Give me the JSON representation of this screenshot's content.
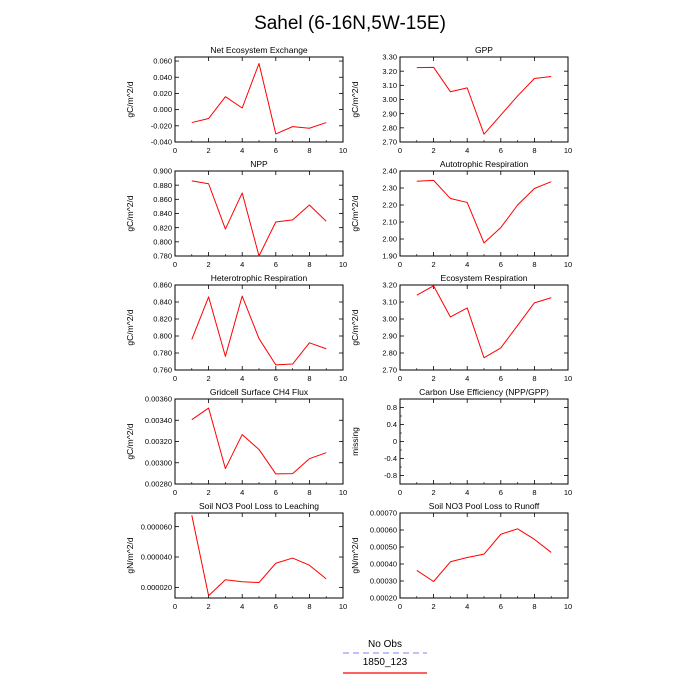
{
  "title": "Sahel (6-16N,5W-15E)",
  "legend": {
    "placement": "bottom-center",
    "entries": [
      {
        "label": "No Obs",
        "color": "#9b9bff",
        "style": "dashed"
      },
      {
        "label": "1850_123",
        "color": "#ff0000",
        "style": "solid"
      }
    ]
  },
  "chart_data": [
    {
      "type": "line",
      "title": "Net Ecosystem Exchange",
      "ylabel": "gC/m^2/d",
      "xlim": [
        0,
        10
      ],
      "xticks": [
        0,
        2,
        4,
        6,
        8,
        10
      ],
      "ylim": [
        -0.04,
        0.065
      ],
      "yticks": [
        "-0.040",
        "-0.020",
        "0.000",
        "0.020",
        "0.040",
        "0.060"
      ],
      "yticks_v": [
        -0.04,
        -0.02,
        0.0,
        0.02,
        0.04,
        0.06
      ],
      "x": [
        1,
        2,
        3,
        4,
        5,
        6,
        7,
        8,
        9
      ],
      "series": [
        {
          "name": "1850_123",
          "color": "#ff0000",
          "values": [
            -0.016,
            -0.011,
            0.016,
            0.002,
            0.057,
            -0.03,
            -0.021,
            -0.023,
            -0.016
          ]
        }
      ]
    },
    {
      "type": "line",
      "title": "GPP",
      "ylabel": "gC/m^2/d",
      "xlim": [
        0,
        10
      ],
      "xticks": [
        0,
        2,
        4,
        6,
        8,
        10
      ],
      "ylim": [
        2.7,
        3.3
      ],
      "yticks": [
        "2.70",
        "2.80",
        "2.90",
        "3.00",
        "3.10",
        "3.20",
        "3.30"
      ],
      "yticks_v": [
        2.7,
        2.8,
        2.9,
        3.0,
        3.1,
        3.2,
        3.3
      ],
      "x": [
        1,
        2,
        3,
        4,
        5,
        6,
        7,
        8,
        9
      ],
      "series": [
        {
          "name": "1850_123",
          "color": "#ff0000",
          "values": [
            3.225,
            3.227,
            3.055,
            3.082,
            2.755,
            2.89,
            3.025,
            3.148,
            3.162
          ]
        }
      ]
    },
    {
      "type": "line",
      "title": "NPP",
      "ylabel": "gC/m^2/d",
      "xlim": [
        0,
        10
      ],
      "xticks": [
        0,
        2,
        4,
        6,
        8,
        10
      ],
      "ylim": [
        0.78,
        0.9
      ],
      "yticks": [
        "0.780",
        "0.800",
        "0.820",
        "0.840",
        "0.860",
        "0.880",
        "0.900"
      ],
      "yticks_v": [
        0.78,
        0.8,
        0.82,
        0.84,
        0.86,
        0.88,
        0.9
      ],
      "x": [
        1,
        2,
        3,
        4,
        5,
        6,
        7,
        8,
        9
      ],
      "series": [
        {
          "name": "1850_123",
          "color": "#ff0000",
          "values": [
            0.886,
            0.882,
            0.818,
            0.869,
            0.78,
            0.828,
            0.831,
            0.852,
            0.829
          ]
        }
      ]
    },
    {
      "type": "line",
      "title": "Autotrophic Respiration",
      "ylabel": "gC/m^2/d",
      "xlim": [
        0,
        10
      ],
      "xticks": [
        0,
        2,
        4,
        6,
        8,
        10
      ],
      "ylim": [
        1.9,
        2.4
      ],
      "yticks": [
        "1.90",
        "2.00",
        "2.10",
        "2.20",
        "2.30",
        "2.40"
      ],
      "yticks_v": [
        1.9,
        2.0,
        2.1,
        2.2,
        2.3,
        2.4
      ],
      "x": [
        1,
        2,
        3,
        4,
        5,
        6,
        7,
        8,
        9
      ],
      "series": [
        {
          "name": "1850_123",
          "color": "#ff0000",
          "values": [
            2.34,
            2.345,
            2.238,
            2.215,
            1.977,
            2.067,
            2.2,
            2.297,
            2.337
          ]
        }
      ]
    },
    {
      "type": "line",
      "title": "Heterotrophic Respiration",
      "ylabel": "gC/m^2/d",
      "xlim": [
        0,
        10
      ],
      "xticks": [
        0,
        2,
        4,
        6,
        8,
        10
      ],
      "ylim": [
        0.76,
        0.86
      ],
      "yticks": [
        "0.760",
        "0.780",
        "0.800",
        "0.820",
        "0.840",
        "0.860"
      ],
      "yticks_v": [
        0.76,
        0.78,
        0.8,
        0.82,
        0.84,
        0.86
      ],
      "x": [
        1,
        2,
        3,
        4,
        5,
        6,
        7,
        8,
        9
      ],
      "series": [
        {
          "name": "1850_123",
          "color": "#ff0000",
          "values": [
            0.796,
            0.846,
            0.776,
            0.847,
            0.797,
            0.766,
            0.767,
            0.792,
            0.785
          ]
        }
      ]
    },
    {
      "type": "line",
      "title": "Ecosystem Respiration",
      "ylabel": "gC/m^2/d",
      "xlim": [
        0,
        10
      ],
      "xticks": [
        0,
        2,
        4,
        6,
        8,
        10
      ],
      "ylim": [
        2.7,
        3.2
      ],
      "yticks": [
        "2.70",
        "2.80",
        "2.90",
        "3.00",
        "3.10",
        "3.20"
      ],
      "yticks_v": [
        2.7,
        2.8,
        2.9,
        3.0,
        3.1,
        3.2
      ],
      "x": [
        1,
        2,
        3,
        4,
        5,
        6,
        7,
        8,
        9
      ],
      "series": [
        {
          "name": "1850_123",
          "color": "#ff0000",
          "values": [
            3.14,
            3.195,
            3.012,
            3.065,
            2.772,
            2.83,
            2.962,
            3.095,
            3.125
          ]
        }
      ]
    },
    {
      "type": "line",
      "title": "Gridcell Surface CH4 Flux",
      "ylabel": "gC/m^2/d",
      "xlim": [
        0,
        10
      ],
      "xticks": [
        0,
        2,
        4,
        6,
        8,
        10
      ],
      "ylim": [
        0.0028,
        0.0036
      ],
      "yticks": [
        "0.00280",
        "0.00300",
        "0.00320",
        "0.00340",
        "0.00360"
      ],
      "yticks_v": [
        0.0028,
        0.003,
        0.0032,
        0.0034,
        0.0036
      ],
      "x": [
        1,
        2,
        3,
        4,
        5,
        6,
        7,
        8,
        9
      ],
      "series": [
        {
          "name": "1850_123",
          "color": "#ff0000",
          "values": [
            0.003405,
            0.003515,
            0.002945,
            0.003265,
            0.003125,
            0.002895,
            0.002898,
            0.003038,
            0.003095
          ]
        }
      ]
    },
    {
      "type": "line",
      "title": "Carbon Use Efficiency (NPP/GPP)",
      "ylabel": "missing",
      "xlim": [
        0,
        10
      ],
      "xticks": [
        0,
        2,
        4,
        6,
        8,
        10
      ],
      "ylim": [
        -1.0,
        1.0
      ],
      "yticks": [
        "-0.8",
        "-0.4",
        "0",
        "0.4",
        "0.8"
      ],
      "yticks_v": [
        -0.8,
        -0.4,
        0,
        0.4,
        0.8
      ],
      "yminor_v": [
        -0.6,
        -0.2,
        0.2,
        0.6
      ],
      "x": [],
      "series": []
    },
    {
      "type": "line",
      "title": "Soil NO3 Pool Loss to Leaching",
      "ylabel": "gN/m^2/d",
      "xlim": [
        0,
        10
      ],
      "xticks": [
        0,
        2,
        4,
        6,
        8,
        10
      ],
      "ylim": [
        1.3e-05,
        6.9e-05
      ],
      "yticks": [
        "0.000020",
        "0.000040",
        "0.000060"
      ],
      "yticks_v": [
        2e-05,
        4e-05,
        6e-05
      ],
      "x": [
        1,
        2,
        3,
        4,
        5,
        6,
        7,
        8,
        9
      ],
      "series": [
        {
          "name": "1850_123",
          "color": "#ff0000",
          "values": [
            6.75e-05,
            1.45e-05,
            2.5e-05,
            2.37e-05,
            2.32e-05,
            3.59e-05,
            3.93e-05,
            3.46e-05,
            2.56e-05
          ]
        }
      ]
    },
    {
      "type": "line",
      "title": "Soil NO3 Pool Loss to Runoff",
      "ylabel": "gN/m^2/d",
      "xlim": [
        0,
        10
      ],
      "xticks": [
        0,
        2,
        4,
        6,
        8,
        10
      ],
      "ylim": [
        0.0002,
        0.0007
      ],
      "yticks": [
        "0.00020",
        "0.00030",
        "0.00040",
        "0.00050",
        "0.00060",
        "0.00070"
      ],
      "yticks_v": [
        0.0002,
        0.0003,
        0.0004,
        0.0005,
        0.0006,
        0.0007
      ],
      "x": [
        1,
        2,
        3,
        4,
        5,
        6,
        7,
        8,
        9
      ],
      "series": [
        {
          "name": "1850_123",
          "color": "#ff0000",
          "values": [
            0.000362,
            0.000297,
            0.000413,
            0.000438,
            0.000458,
            0.000575,
            0.000607,
            0.000545,
            0.000468
          ]
        }
      ]
    }
  ]
}
